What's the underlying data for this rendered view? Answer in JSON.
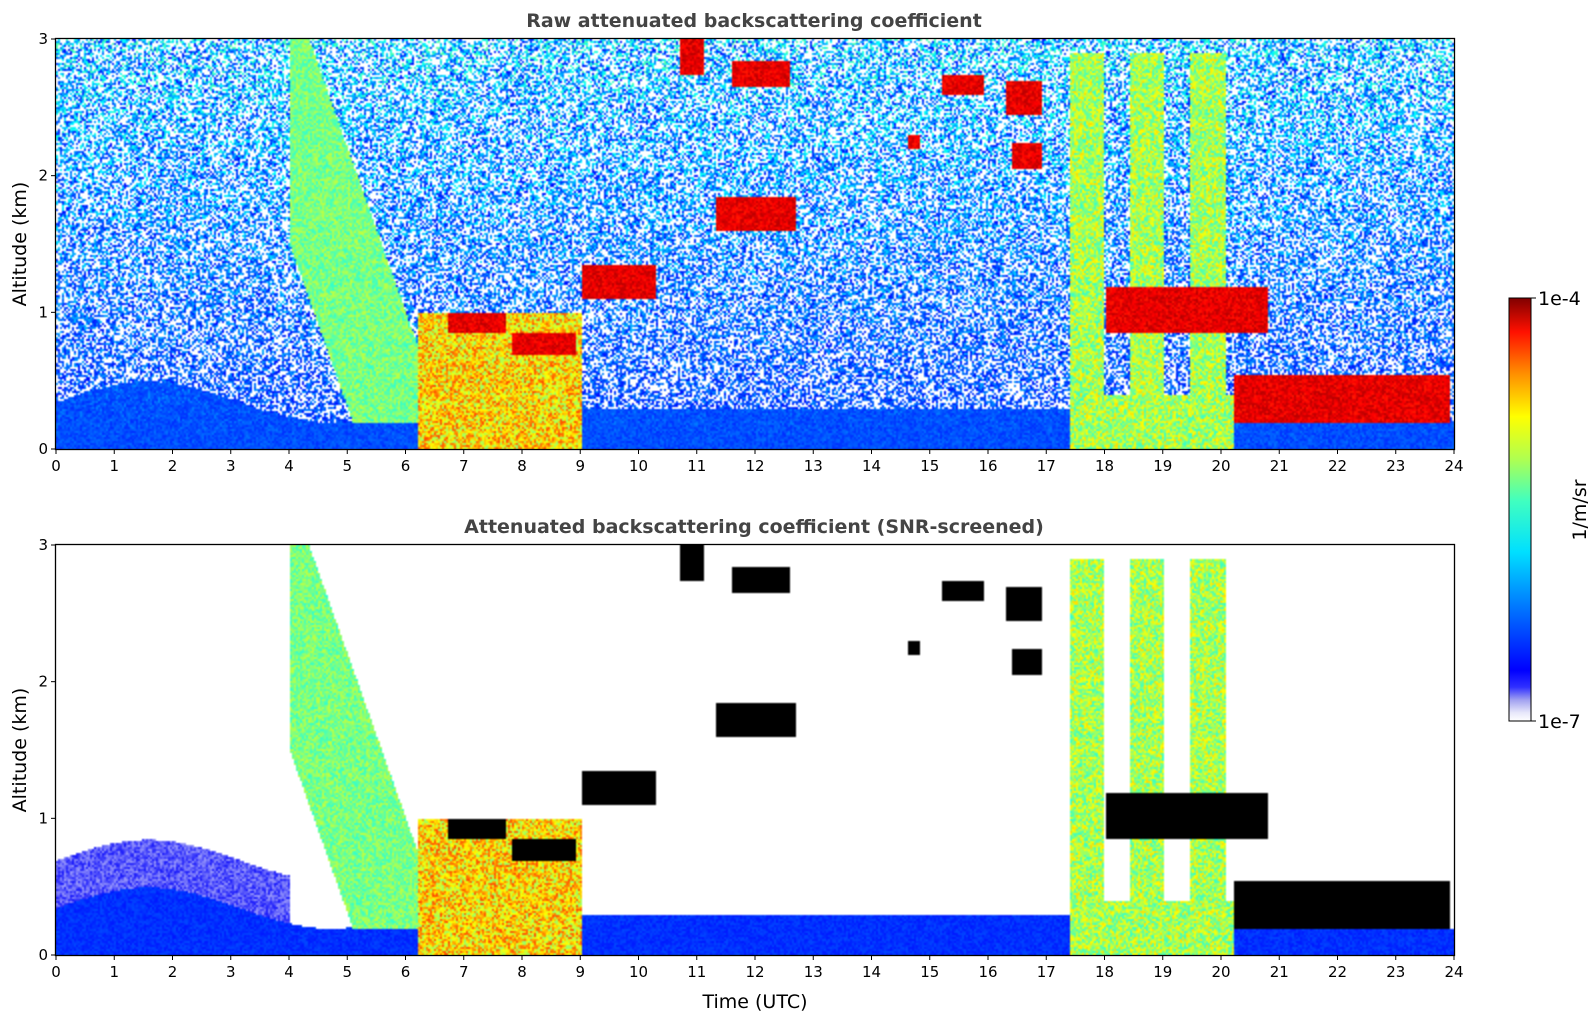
{
  "chart_data": [
    {
      "type": "heatmap",
      "title": "Raw attenuated backscattering coefficient",
      "xlabel": "",
      "ylabel": "Altitude (km)",
      "xlim": [
        0,
        24
      ],
      "ylim": [
        0,
        3
      ],
      "x_ticks": [
        "0",
        "1",
        "2",
        "3",
        "4",
        "5",
        "6",
        "7",
        "8",
        "9",
        "10",
        "11",
        "12",
        "13",
        "14",
        "15",
        "16",
        "17",
        "18",
        "19",
        "20",
        "21",
        "22",
        "23",
        "24"
      ],
      "y_ticks": [
        "0",
        "1",
        "2",
        "3"
      ],
      "screened": false,
      "features": [
        {
          "kind": "boundary_layer",
          "t": [
            0,
            24
          ],
          "top_km": 0.35,
          "level": 0.2
        },
        {
          "kind": "aerosol_plume",
          "t": [
            4.0,
            6.8
          ],
          "alt_km": [
            0.2,
            3.0
          ],
          "level": 0.55
        },
        {
          "kind": "precip_fall",
          "t": [
            6.2,
            9.0
          ],
          "alt_km": [
            0.0,
            1.0
          ],
          "level": 0.75
        },
        {
          "kind": "cloud_layer",
          "t": [
            6.7,
            7.7
          ],
          "alt_km": [
            0.85,
            1.0
          ],
          "level": 0.98
        },
        {
          "kind": "cloud_layer",
          "t": [
            7.8,
            8.9
          ],
          "alt_km": [
            0.7,
            0.85
          ],
          "level": 0.98
        },
        {
          "kind": "cloud_layer",
          "t": [
            9.0,
            10.3
          ],
          "alt_km": [
            1.1,
            1.35
          ],
          "level": 0.98
        },
        {
          "kind": "cloud_patch",
          "t": [
            10.7,
            11.1
          ],
          "alt_km": [
            2.75,
            3.0
          ],
          "level": 0.98
        },
        {
          "kind": "cloud_patch",
          "t": [
            11.6,
            12.6
          ],
          "alt_km": [
            2.65,
            2.85
          ],
          "level": 0.98
        },
        {
          "kind": "cloud_patch",
          "t": [
            11.3,
            12.7
          ],
          "alt_km": [
            1.6,
            1.85
          ],
          "level": 0.98
        },
        {
          "kind": "cloud_patch",
          "t": [
            14.6,
            14.8
          ],
          "alt_km": [
            2.2,
            2.3
          ],
          "level": 0.98
        },
        {
          "kind": "cloud_patch",
          "t": [
            15.2,
            15.9
          ],
          "alt_km": [
            2.6,
            2.75
          ],
          "level": 0.98
        },
        {
          "kind": "cloud_patch",
          "t": [
            16.3,
            16.9
          ],
          "alt_km": [
            2.45,
            2.7
          ],
          "level": 0.98
        },
        {
          "kind": "cloud_patch",
          "t": [
            16.4,
            16.9
          ],
          "alt_km": [
            2.05,
            2.25
          ],
          "level": 0.98
        },
        {
          "kind": "convective_cells",
          "t": [
            17.4,
            20.2
          ],
          "alt_km": [
            0.0,
            2.9
          ],
          "level": 0.6
        },
        {
          "kind": "cloud_layer",
          "t": [
            18.0,
            20.8
          ],
          "alt_km": [
            0.85,
            1.2
          ],
          "level": 0.98
        },
        {
          "kind": "cloud_layer",
          "t": [
            20.2,
            23.9
          ],
          "alt_km": [
            0.2,
            0.55
          ],
          "level": 0.98
        }
      ]
    },
    {
      "type": "heatmap",
      "title": "Attenuated backscattering coefficient (SNR-screened)",
      "xlabel": "Time (UTC)",
      "ylabel": "Altitude (km)",
      "xlim": [
        0,
        24
      ],
      "ylim": [
        0,
        3
      ],
      "x_ticks": [
        "0",
        "1",
        "2",
        "3",
        "4",
        "5",
        "6",
        "7",
        "8",
        "9",
        "10",
        "11",
        "12",
        "13",
        "14",
        "15",
        "16",
        "17",
        "18",
        "19",
        "20",
        "21",
        "22",
        "23",
        "24"
      ],
      "y_ticks": [
        "0",
        "1",
        "2",
        "3"
      ],
      "screened": true
    }
  ],
  "colorbar": {
    "label": "1/m/sr",
    "max_label": "1e-4",
    "min_label": "1e-7",
    "range": [
      1e-07,
      0.0001
    ],
    "colormap": "jet",
    "low_colors": [
      "#ffffff",
      "#e8e8f8",
      "#b0b0f0",
      "#6060f0",
      "#0000ff"
    ]
  }
}
